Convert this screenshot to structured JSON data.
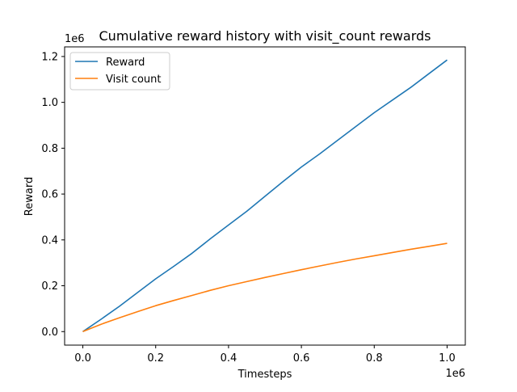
{
  "chart_data": {
    "type": "line",
    "title": "Cumulative reward history with visit_count rewards",
    "xlabel": "Timesteps",
    "ylabel": "Reward",
    "x_offset_label": "1e6",
    "y_offset_label": "1e6",
    "xlim": [
      -50000,
      1050000
    ],
    "ylim": [
      -59000,
      1242000
    ],
    "x_ticks": [
      0,
      200000,
      400000,
      600000,
      800000,
      1000000
    ],
    "x_tick_labels": [
      "0.0",
      "0.2",
      "0.4",
      "0.6",
      "0.8",
      "1.0"
    ],
    "y_ticks": [
      0,
      200000,
      400000,
      600000,
      800000,
      1000000,
      1200000
    ],
    "y_tick_labels": [
      "0.0",
      "0.2",
      "0.4",
      "0.6",
      "0.8",
      "1.0",
      "1.2"
    ],
    "grid": false,
    "legend_position": "upper-left",
    "x": [
      0,
      50000,
      100000,
      150000,
      200000,
      250000,
      300000,
      350000,
      400000,
      450000,
      500000,
      550000,
      600000,
      650000,
      700000,
      750000,
      800000,
      850000,
      900000,
      950000,
      1000000
    ],
    "series": [
      {
        "name": "Reward",
        "color": "#1f77b4",
        "values": [
          0,
          54000,
          110000,
          170000,
          230000,
          285000,
          342000,
          405000,
          465000,
          525000,
          590000,
          655000,
          718000,
          775000,
          835000,
          895000,
          955000,
          1010000,
          1065000,
          1125000,
          1185000
        ]
      },
      {
        "name": "Visit count",
        "color": "#ff7f0e",
        "values": [
          0,
          32000,
          60000,
          87000,
          113000,
          136000,
          158000,
          180000,
          200000,
          218000,
          236000,
          253000,
          270000,
          286000,
          302000,
          317000,
          331000,
          345000,
          359000,
          372000,
          385000
        ]
      }
    ]
  }
}
